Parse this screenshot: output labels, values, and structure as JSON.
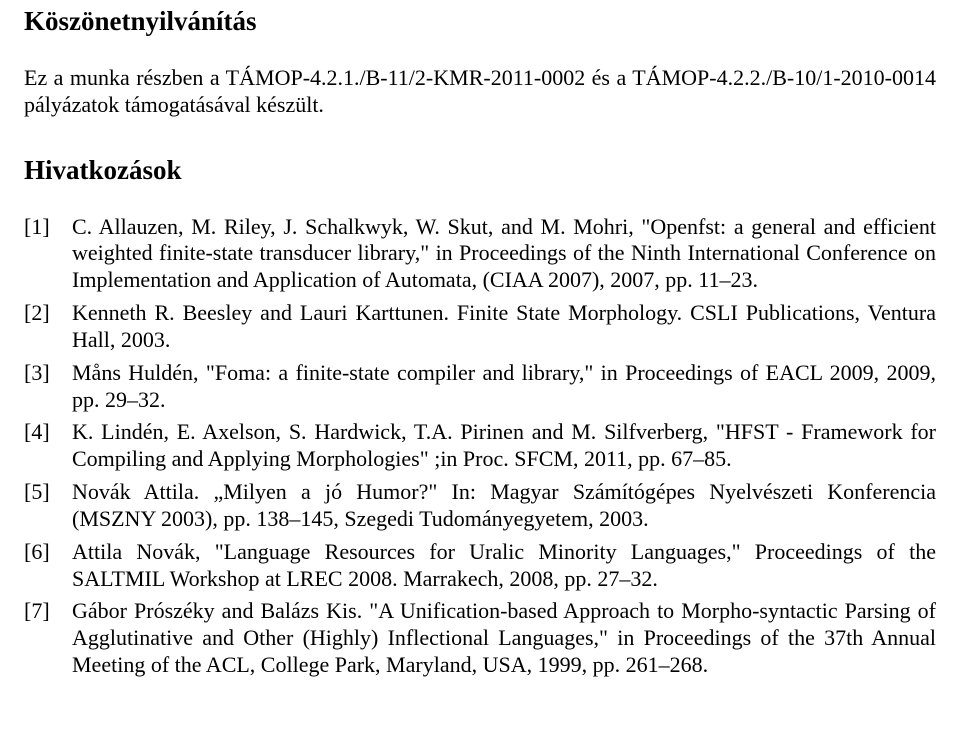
{
  "section1": {
    "title": "Köszönetnyilvánítás",
    "body": "Ez a munka részben a TÁMOP-4.2.1./B-11/2-KMR-2011-0002 és a TÁMOP-4.2.2./B-10/1-2010-0014 pályázatok támogatásával készült."
  },
  "section2": {
    "title": "Hivatkozások",
    "refs": [
      {
        "num": "[1]",
        "text": "C. Allauzen, M. Riley, J. Schalkwyk, W. Skut, and M. Mohri, \"Openfst: a general and efficient weighted finite-state transducer library,\" in Proceedings of the Ninth International Conference on Implementation and Application of Automata, (CIAA 2007), 2007, pp. 11–23."
      },
      {
        "num": "[2]",
        "text": "Kenneth R. Beesley and Lauri Karttunen. Finite State Morphology. CSLI Publications, Ventura Hall, 2003."
      },
      {
        "num": "[3]",
        "text": "Måns Huldén, \"Foma: a finite-state compiler and library,\" in Proceedings of EACL 2009, 2009, pp. 29–32."
      },
      {
        "num": "[4]",
        "text": "K. Lindén, E. Axelson, S. Hardwick, T.A. Pirinen and M. Silfverberg,   \"HFST - Framework for Compiling and Applying Morphologies\" ;in Proc. SFCM, 2011, pp. 67–85."
      },
      {
        "num": "[5]",
        "text": "Novák Attila. „Milyen a jó Humor?\" In: Magyar Számítógépes Nyelvészeti Konferencia (MSZNY 2003), pp. 138–145, Szegedi Tudományegyetem, 2003."
      },
      {
        "num": "[6]",
        "text": "Attila Novák, \"Language Resources for Uralic Minority Languages,\" Proceedings of the SALTMIL Workshop at LREC 2008. Marrakech, 2008, pp. 27–32."
      },
      {
        "num": "[7]",
        "text": "Gábor Prószéky and Balázs Kis. \"A Unification-based Approach to Morpho-syntactic Parsing of Agglutinative and Other (Highly) Inflectional Languages,\" in Proceedings of the 37th Annual Meeting of the ACL, College Park, Maryland, USA, 1999, pp. 261–268."
      }
    ]
  },
  "colors": {
    "text": "#000000",
    "background": "#ffffff"
  },
  "typography": {
    "heading_fontsize_pt": 20,
    "body_fontsize_pt": 16,
    "font_family": "Times New Roman"
  }
}
